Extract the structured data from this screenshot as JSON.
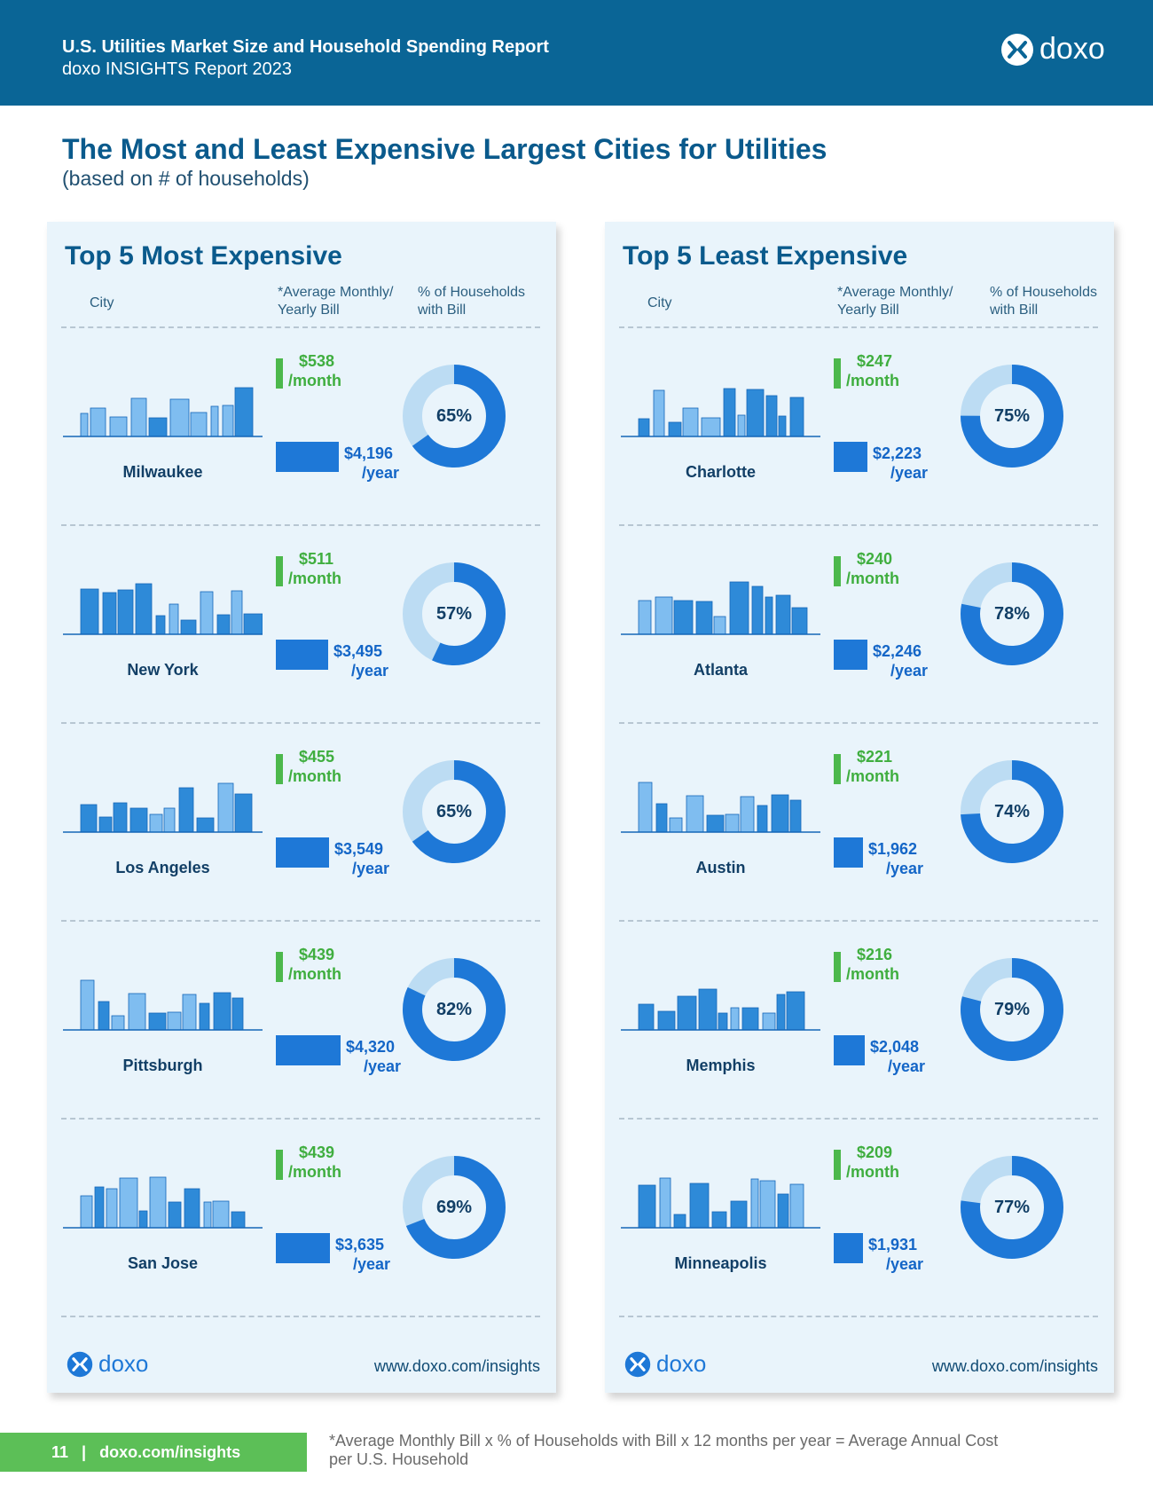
{
  "header": {
    "title": "U.S. Utilities Market Size and Household Spending Report",
    "subtitle": "doxo INSIGHTS Report 2023",
    "logo_text": "doxo"
  },
  "page": {
    "title": "The Most and Least Expensive Largest Cities for Utilities",
    "subtitle": "(based on # of households)"
  },
  "chart_data": [
    {
      "type": "table",
      "title": "Top 5 Most Expensive",
      "columns": [
        "City",
        "*Average Monthly/\nYearly Bill",
        "% of Households\nwith Bill"
      ],
      "rows": [
        {
          "city": "Milwaukee",
          "monthly": "$538",
          "monthly_unit": "/month",
          "yearly": "$4,196",
          "yearly_unit": "/year",
          "yearly_value": 4196,
          "pct": 65,
          "pct_label": "65%"
        },
        {
          "city": "New York",
          "monthly": "$511",
          "monthly_unit": "/month",
          "yearly": "$3,495",
          "yearly_unit": "/year",
          "yearly_value": 3495,
          "pct": 57,
          "pct_label": "57%"
        },
        {
          "city": "Los Angeles",
          "monthly": "$455",
          "monthly_unit": "/month",
          "yearly": "$3,549",
          "yearly_unit": "/year",
          "yearly_value": 3549,
          "pct": 65,
          "pct_label": "65%"
        },
        {
          "city": "Pittsburgh",
          "monthly": "$439",
          "monthly_unit": "/month",
          "yearly": "$4,320",
          "yearly_unit": "/year",
          "yearly_value": 4320,
          "pct": 82,
          "pct_label": "82%"
        },
        {
          "city": "San Jose",
          "monthly": "$439",
          "monthly_unit": "/month",
          "yearly": "$3,635",
          "yearly_unit": "/year",
          "yearly_value": 3635,
          "pct": 69,
          "pct_label": "69%"
        }
      ],
      "footer_logo": "doxo",
      "footer_url": "www.doxo.com/insights"
    },
    {
      "type": "table",
      "title": "Top 5 Least Expensive",
      "columns": [
        "City",
        "*Average Monthly/\nYearly Bill",
        "% of Households\nwith Bill"
      ],
      "rows": [
        {
          "city": "Charlotte",
          "monthly": "$247",
          "monthly_unit": "/month",
          "yearly": "$2,223",
          "yearly_unit": "/year",
          "yearly_value": 2223,
          "pct": 75,
          "pct_label": "75%"
        },
        {
          "city": "Atlanta",
          "monthly": "$240",
          "monthly_unit": "/month",
          "yearly": "$2,246",
          "yearly_unit": "/year",
          "yearly_value": 2246,
          "pct": 78,
          "pct_label": "78%"
        },
        {
          "city": "Austin",
          "monthly": "$221",
          "monthly_unit": "/month",
          "yearly": "$1,962",
          "yearly_unit": "/year",
          "yearly_value": 1962,
          "pct": 74,
          "pct_label": "74%"
        },
        {
          "city": "Memphis",
          "monthly": "$216",
          "monthly_unit": "/month",
          "yearly": "$2,048",
          "yearly_unit": "/year",
          "yearly_value": 2048,
          "pct": 79,
          "pct_label": "79%"
        },
        {
          "city": "Minneapolis",
          "monthly": "$209",
          "monthly_unit": "/month",
          "yearly": "$1,931",
          "yearly_unit": "/year",
          "yearly_value": 1931,
          "pct": 77,
          "pct_label": "77%"
        }
      ],
      "footer_logo": "doxo",
      "footer_url": "www.doxo.com/insights"
    }
  ],
  "colors": {
    "header_bg": "#0a6596",
    "title": "#0a5a8c",
    "monthly_green": "#3fae3f",
    "yearly_blue": "#1e78d7",
    "donut_fill": "#1e78d7",
    "donut_track": "#bcdcf3",
    "panel_bg": "#e9f4fb",
    "skyline": "#2e8ad8"
  },
  "icons": {
    "logo_mark": "doxo-logo-icon",
    "skyline": "city-skyline-icon"
  },
  "footer": {
    "page_number": "11",
    "separator": "|",
    "url": "doxo.com/insights",
    "footnote": "*Average Monthly Bill x % of Households with Bill x 12 months per year = Average Annual Cost per U.S. Household"
  }
}
